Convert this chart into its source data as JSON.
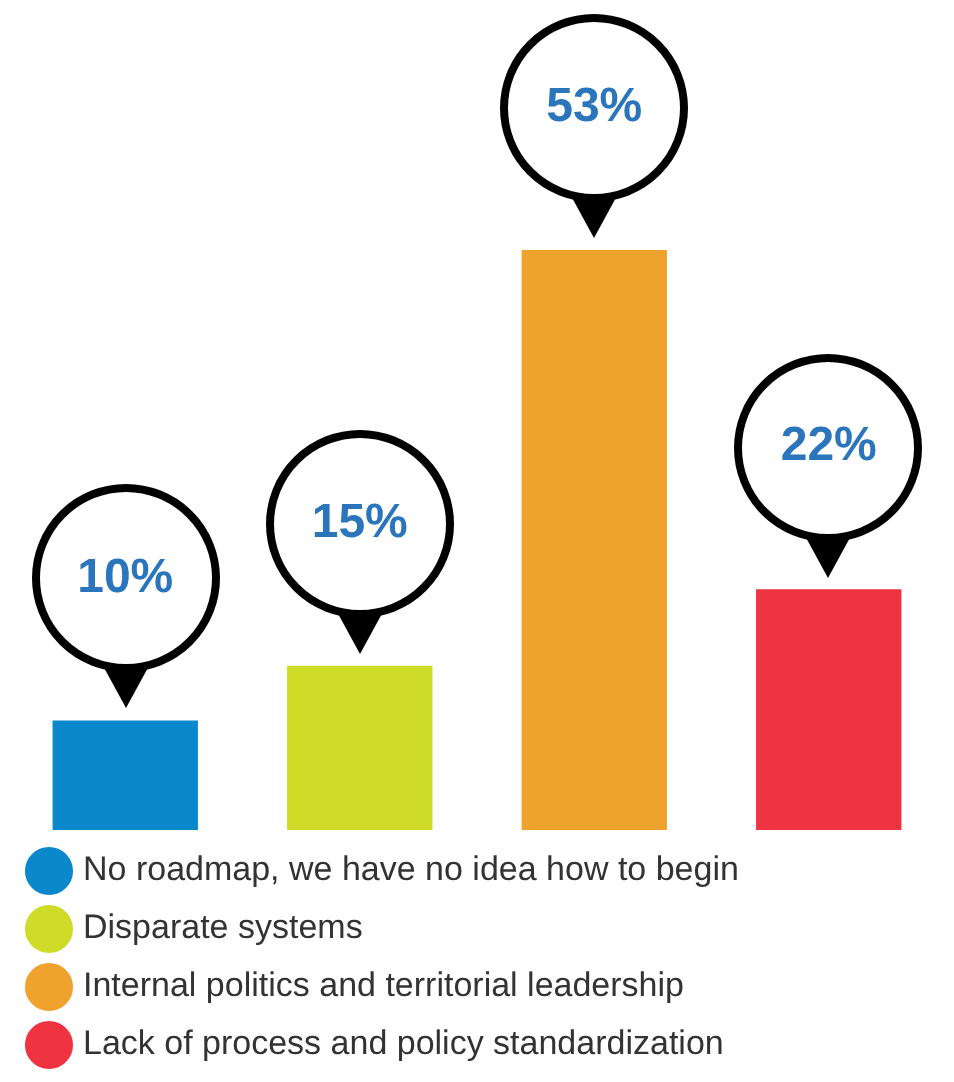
{
  "chart_data": {
    "type": "bar",
    "categories": [
      null,
      null,
      null,
      null
    ],
    "series": [
      {
        "name": "No roadmap, we have no idea how to begin",
        "color": "#0a88cc",
        "values": [
          10,
          null,
          null,
          null
        ],
        "value_labels": [
          "10%",
          null,
          null,
          null
        ]
      },
      {
        "name": "Disparate systems",
        "color": "#cedc28",
        "values": [
          null,
          15,
          null,
          null
        ],
        "value_labels": [
          null,
          "15%",
          null,
          null
        ]
      },
      {
        "name": "Internal politics and territorial leadership",
        "color": "#efa22e",
        "values": [
          null,
          null,
          53,
          null
        ],
        "value_labels": [
          null,
          null,
          "53%",
          null
        ]
      },
      {
        "name": "Lack of process and policy standardization",
        "color": "#ef3340",
        "values": [
          null,
          null,
          null,
          22
        ],
        "value_labels": [
          null,
          null,
          null,
          "22%"
        ]
      }
    ],
    "stacked": true,
    "legend": "bottom",
    "tick_labels": false,
    "grid": false
  }
}
